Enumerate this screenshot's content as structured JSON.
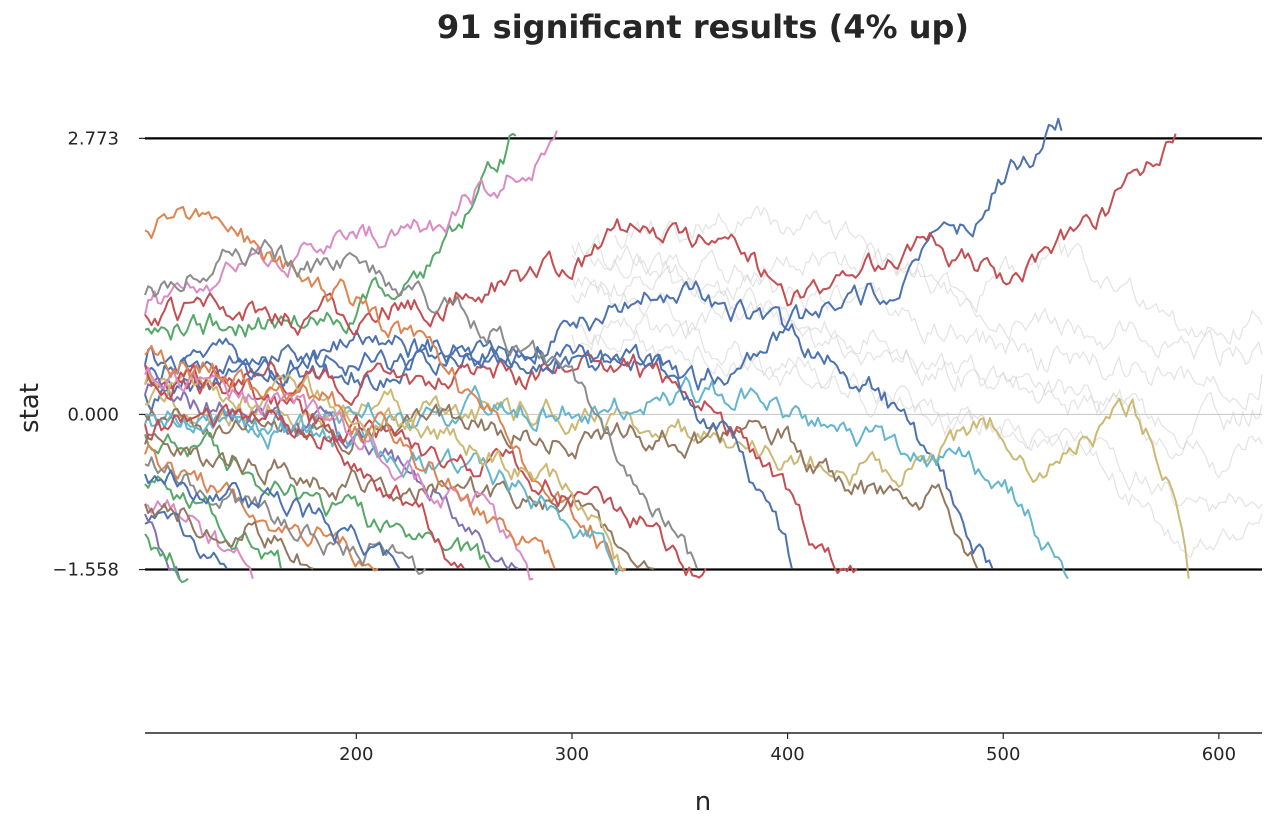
{
  "chart_data": {
    "type": "line",
    "title": "91 significant results (4% up)",
    "xlabel": "n",
    "ylabel": "stat",
    "xlim": [
      102,
      620
    ],
    "ylim": [
      -3.2,
      3.5
    ],
    "xticks": [
      200,
      300,
      400,
      500,
      600
    ],
    "yticks": [
      -1.558,
      0.0,
      2.773
    ],
    "ytick_labels": [
      "−1.558",
      "0.000",
      "2.773"
    ],
    "xtick_labels": [
      "200",
      "300",
      "400",
      "500",
      "600"
    ],
    "upper_boundary": 2.773,
    "lower_boundary": -1.558,
    "zero_line": 0.0,
    "grid": false,
    "palette": [
      "#4c72b0",
      "#dd8452",
      "#55a868",
      "#c44e52",
      "#8172b3",
      "#937860",
      "#da8bc3",
      "#8c8c8c",
      "#ccb974",
      "#64b5cd"
    ],
    "nonsignificant_color": "#cccccc",
    "series": [
      {
        "color": "#55a868",
        "values": [
          [
            102,
            0.85
          ],
          [
            150,
            0.9
          ],
          [
            200,
            1.0
          ],
          [
            240,
            1.6
          ],
          [
            258,
            2.2
          ],
          [
            274,
            2.8
          ]
        ]
      },
      {
        "color": "#da8bc3",
        "values": [
          [
            102,
            1.0
          ],
          [
            150,
            1.5
          ],
          [
            200,
            1.75
          ],
          [
            240,
            1.9
          ],
          [
            258,
            2.3
          ],
          [
            280,
            2.5
          ],
          [
            293,
            2.85
          ]
        ]
      },
      {
        "color": "#4c72b0",
        "values": [
          [
            102,
            0.5
          ],
          [
            200,
            0.7
          ],
          [
            290,
            0.6
          ],
          [
            360,
            0.3
          ],
          [
            410,
            0.9
          ],
          [
            440,
            1.2
          ],
          [
            480,
            1.8
          ],
          [
            505,
            2.5
          ],
          [
            527,
            2.85
          ]
        ]
      },
      {
        "color": "#c44e52",
        "values": [
          [
            102,
            1.0
          ],
          [
            200,
            1.0
          ],
          [
            300,
            1.5
          ],
          [
            330,
            1.9
          ],
          [
            380,
            1.7
          ],
          [
            400,
            1.1
          ],
          [
            430,
            1.3
          ],
          [
            460,
            1.7
          ],
          [
            500,
            1.4
          ],
          [
            540,
            1.9
          ],
          [
            565,
            2.3
          ],
          [
            580,
            2.82
          ]
        ]
      },
      {
        "color": "#4c72b0",
        "values": [
          [
            102,
            0.2
          ],
          [
            250,
            0.5
          ],
          [
            320,
            1.0
          ],
          [
            350,
            1.35
          ],
          [
            390,
            0.9
          ],
          [
            420,
            0.5
          ],
          [
            445,
            0.2
          ],
          [
            460,
            -0.3
          ],
          [
            480,
            -1.0
          ],
          [
            495,
            -1.55
          ]
        ]
      },
      {
        "color": "#ccb974",
        "values": [
          [
            102,
            0.1
          ],
          [
            300,
            0.0
          ],
          [
            400,
            -0.4
          ],
          [
            450,
            -0.6
          ],
          [
            480,
            -0.3
          ],
          [
            500,
            -0.1
          ],
          [
            520,
            -0.6
          ],
          [
            540,
            -0.2
          ],
          [
            560,
            0.1
          ],
          [
            580,
            -0.7
          ],
          [
            586,
            -1.65
          ]
        ]
      },
      {
        "color": "#64b5cd",
        "values": [
          [
            102,
            -0.1
          ],
          [
            300,
            0.1
          ],
          [
            380,
            0.2
          ],
          [
            420,
            -0.2
          ],
          [
            460,
            -0.4
          ],
          [
            490,
            -0.6
          ],
          [
            510,
            -0.9
          ],
          [
            530,
            -1.65
          ]
        ]
      },
      {
        "color": "#937860",
        "values": [
          [
            102,
            0.0
          ],
          [
            300,
            -0.2
          ],
          [
            400,
            -0.3
          ],
          [
            440,
            -0.8
          ],
          [
            470,
            -0.9
          ],
          [
            488,
            -1.55
          ]
        ]
      },
      {
        "color": "#c44e52",
        "values": [
          [
            102,
            0.3
          ],
          [
            280,
            0.4
          ],
          [
            330,
            0.5
          ],
          [
            360,
            0.2
          ],
          [
            390,
            -0.5
          ],
          [
            410,
            -1.2
          ],
          [
            432,
            -1.55
          ]
        ]
      },
      {
        "color": "#4c72b0",
        "values": [
          [
            102,
            0.5
          ],
          [
            300,
            0.6
          ],
          [
            340,
            0.4
          ],
          [
            370,
            -0.2
          ],
          [
            390,
            -1.0
          ],
          [
            402,
            -1.55
          ]
        ]
      },
      {
        "color": "#dd8452",
        "values": [
          [
            102,
            1.85
          ],
          [
            130,
            2.0
          ],
          [
            160,
            1.6
          ],
          [
            200,
            1.1
          ],
          [
            240,
            0.5
          ],
          [
            280,
            -0.5
          ],
          [
            310,
            -1.1
          ],
          [
            325,
            -1.55
          ]
        ]
      },
      {
        "color": "#8c8c8c",
        "values": [
          [
            102,
            1.2
          ],
          [
            150,
            1.6
          ],
          [
            200,
            1.4
          ],
          [
            250,
            1.0
          ],
          [
            300,
            0.5
          ],
          [
            330,
            -0.6
          ],
          [
            358,
            -1.55
          ]
        ]
      },
      {
        "color": "#8172b3",
        "values": [
          [
            102,
            0.2
          ],
          [
            150,
            0.0
          ],
          [
            200,
            -0.3
          ],
          [
            240,
            -0.8
          ],
          [
            275,
            -1.55
          ]
        ]
      },
      {
        "color": "#55a868",
        "values": [
          [
            102,
            -0.2
          ],
          [
            140,
            -0.5
          ],
          [
            180,
            -0.9
          ],
          [
            220,
            -1.2
          ],
          [
            262,
            -1.55
          ]
        ]
      },
      {
        "color": "#dd8452",
        "values": [
          [
            102,
            -0.4
          ],
          [
            140,
            -0.8
          ],
          [
            170,
            -1.1
          ],
          [
            210,
            -1.55
          ]
        ]
      },
      {
        "color": "#da8bc3",
        "values": [
          [
            102,
            -0.9
          ],
          [
            130,
            -1.2
          ],
          [
            152,
            -1.65
          ]
        ]
      },
      {
        "color": "#4c72b0",
        "values": [
          [
            102,
            -1.1
          ],
          [
            120,
            -1.3
          ],
          [
            140,
            -1.55
          ]
        ]
      },
      {
        "color": "#937860",
        "values": [
          [
            102,
            -0.3
          ],
          [
            180,
            -0.6
          ],
          [
            250,
            -0.8
          ],
          [
            300,
            -1.0
          ],
          [
            338,
            -1.55
          ]
        ]
      },
      {
        "color": "#64b5cd",
        "values": [
          [
            102,
            0.0
          ],
          [
            180,
            -0.2
          ],
          [
            250,
            -0.5
          ],
          [
            290,
            -0.9
          ],
          [
            322,
            -1.55
          ]
        ]
      },
      {
        "color": "#c44e52",
        "values": [
          [
            102,
            -0.1
          ],
          [
            200,
            -0.2
          ],
          [
            280,
            -0.6
          ],
          [
            330,
            -1.1
          ],
          [
            362,
            -1.55
          ]
        ]
      },
      {
        "color": "#ccb974",
        "values": [
          [
            102,
            0.3
          ],
          [
            200,
            0.1
          ],
          [
            260,
            -0.3
          ],
          [
            300,
            -0.8
          ],
          [
            324,
            -1.55
          ]
        ]
      },
      {
        "color": "#8c8c8c",
        "values": [
          [
            102,
            -0.5
          ],
          [
            150,
            -0.9
          ],
          [
            200,
            -1.3
          ],
          [
            232,
            -1.55
          ]
        ]
      },
      {
        "color": "#55a868",
        "values": [
          [
            102,
            -0.7
          ],
          [
            130,
            -1.0
          ],
          [
            150,
            -1.3
          ],
          [
            165,
            -1.55
          ]
        ]
      },
      {
        "color": "#c44e52",
        "values": [
          [
            102,
            0.5
          ],
          [
            150,
            0.3
          ],
          [
            190,
            -0.2
          ],
          [
            220,
            -0.8
          ],
          [
            250,
            -1.55
          ]
        ]
      },
      {
        "color": "#4c72b0",
        "values": [
          [
            102,
            -0.6
          ],
          [
            150,
            -0.8
          ],
          [
            190,
            -1.1
          ],
          [
            220,
            -1.55
          ]
        ]
      },
      {
        "color": "#da8bc3",
        "values": [
          [
            102,
            0.4
          ],
          [
            180,
            0.0
          ],
          [
            230,
            -0.6
          ],
          [
            262,
            -1.0
          ],
          [
            282,
            -1.65
          ]
        ]
      },
      {
        "color": "#dd8452",
        "values": [
          [
            102,
            0.6
          ],
          [
            160,
            0.3
          ],
          [
            210,
            -0.1
          ],
          [
            250,
            -0.8
          ],
          [
            292,
            -1.55
          ]
        ]
      },
      {
        "color": "#937860",
        "values": [
          [
            102,
            -0.9
          ],
          [
            150,
            -1.1
          ],
          [
            180,
            -1.55
          ]
        ]
      },
      {
        "color": "#8172b3",
        "values": [
          [
            102,
            -1.0
          ],
          [
            110,
            -1.3
          ],
          [
            118,
            -1.65
          ]
        ]
      },
      {
        "color": "#55a868",
        "values": [
          [
            102,
            -1.2
          ],
          [
            112,
            -1.4
          ],
          [
            122,
            -1.65
          ]
        ]
      }
    ],
    "background_series": [
      [
        [
          300,
          1.6
        ],
        [
          360,
          1.4
        ],
        [
          420,
          1.2
        ],
        [
          480,
          0.8
        ],
        [
          540,
          0.5
        ],
        [
          590,
          0.3
        ],
        [
          620,
          0.4
        ]
      ],
      [
        [
          300,
          1.2
        ],
        [
          380,
          0.9
        ],
        [
          440,
          0.6
        ],
        [
          500,
          0.3
        ],
        [
          560,
          0.0
        ],
        [
          600,
          -0.5
        ],
        [
          620,
          -0.3
        ]
      ],
      [
        [
          300,
          1.7
        ],
        [
          380,
          1.5
        ],
        [
          440,
          1.6
        ],
        [
          480,
          1.3
        ],
        [
          530,
          1.5
        ],
        [
          580,
          1.0
        ],
        [
          620,
          0.9
        ]
      ],
      [
        [
          300,
          0.9
        ],
        [
          380,
          0.6
        ],
        [
          440,
          0.2
        ],
        [
          500,
          -0.2
        ],
        [
          560,
          -0.6
        ],
        [
          600,
          -1.1
        ],
        [
          620,
          -0.9
        ]
      ],
      [
        [
          300,
          1.4
        ],
        [
          360,
          1.1
        ],
        [
          420,
          0.9
        ],
        [
          470,
          0.5
        ],
        [
          530,
          0.2
        ],
        [
          580,
          -0.3
        ],
        [
          620,
          0.1
        ]
      ],
      [
        [
          300,
          0.8
        ],
        [
          360,
          0.7
        ],
        [
          420,
          0.4
        ],
        [
          480,
          0.0
        ],
        [
          540,
          -0.4
        ],
        [
          590,
          -1.4
        ],
        [
          620,
          -1.0
        ]
      ],
      [
        [
          320,
          1.8
        ],
        [
          380,
          2.0
        ],
        [
          430,
          1.7
        ],
        [
          480,
          1.2
        ],
        [
          530,
          0.9
        ],
        [
          590,
          0.7
        ],
        [
          620,
          0.6
        ]
      ]
    ]
  }
}
